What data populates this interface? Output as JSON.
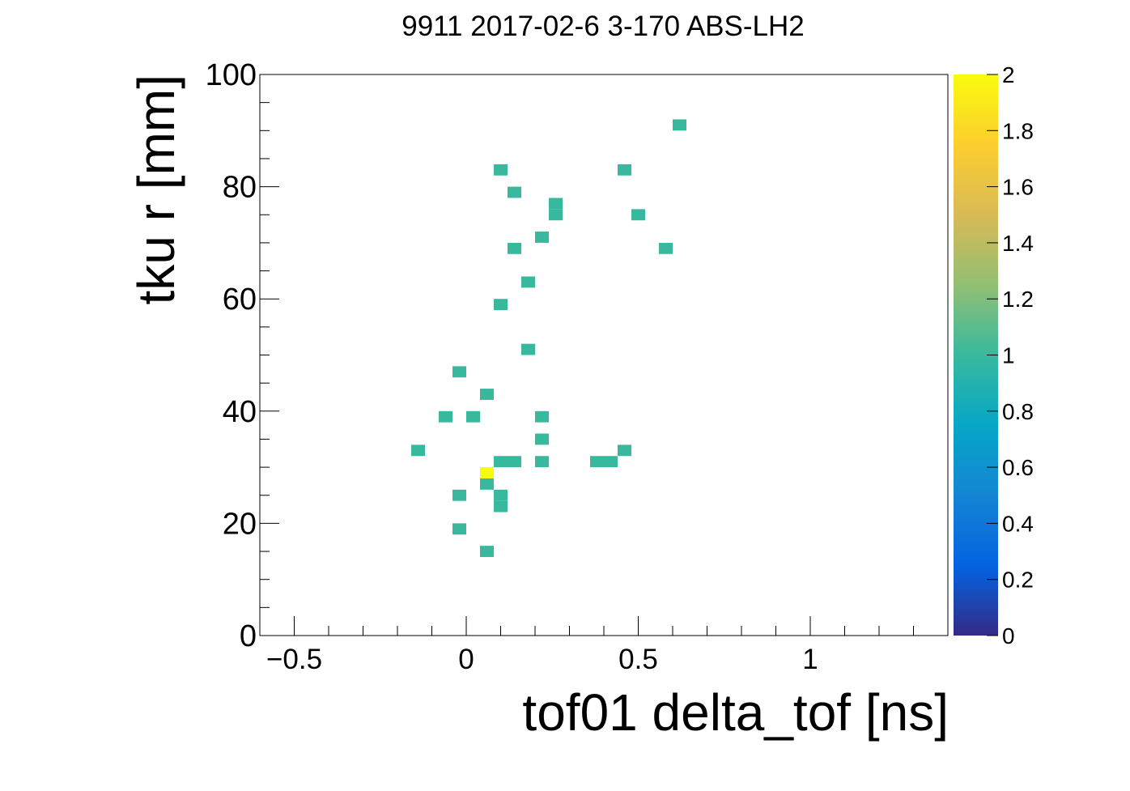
{
  "chart_data": {
    "type": "heatmap",
    "title": "9911 2017-02-6 3-170 ABS-LH2",
    "xlabel": "tof01 delta_tof [ns]",
    "ylabel": "tku r [mm]",
    "xlim": [
      -0.6,
      1.4
    ],
    "ylim": [
      0,
      100
    ],
    "xticks": [
      {
        "value": -0.5,
        "label": "−0.5"
      },
      {
        "value": 0,
        "label": "0"
      },
      {
        "value": 0.5,
        "label": "0.5"
      },
      {
        "value": 1,
        "label": "1"
      }
    ],
    "yticks": [
      {
        "value": 0,
        "label": "0"
      },
      {
        "value": 20,
        "label": "20"
      },
      {
        "value": 40,
        "label": "40"
      },
      {
        "value": 60,
        "label": "60"
      },
      {
        "value": 80,
        "label": "80"
      },
      {
        "value": 100,
        "label": "100"
      }
    ],
    "bin_width_x": 0.04,
    "bin_width_y": 2,
    "colorbar": {
      "zlim": [
        0,
        2
      ],
      "ticks": [
        {
          "value": 0,
          "label": "0"
        },
        {
          "value": 0.2,
          "label": "0.2"
        },
        {
          "value": 0.4,
          "label": "0.4"
        },
        {
          "value": 0.6,
          "label": "0.6"
        },
        {
          "value": 0.8,
          "label": "0.8"
        },
        {
          "value": 1.0,
          "label": "1"
        },
        {
          "value": 1.2,
          "label": "1.2"
        },
        {
          "value": 1.4,
          "label": "1.4"
        },
        {
          "value": 1.6,
          "label": "1.6"
        },
        {
          "value": 1.8,
          "label": "1.8"
        },
        {
          "value": 2.0,
          "label": "2"
        }
      ],
      "palette": [
        "#352a87",
        "#0363e1",
        "#1485d4",
        "#06a7c6",
        "#38b99e",
        "#92bf73",
        "#d9ba56",
        "#fcce2e",
        "#f9fb0e"
      ]
    },
    "cells": [
      {
        "x": 0.62,
        "y": 91,
        "count": 1
      },
      {
        "x": 0.1,
        "y": 83,
        "count": 1
      },
      {
        "x": 0.46,
        "y": 83,
        "count": 1
      },
      {
        "x": 0.14,
        "y": 79,
        "count": 1
      },
      {
        "x": 0.26,
        "y": 77,
        "count": 1
      },
      {
        "x": 0.26,
        "y": 75,
        "count": 1
      },
      {
        "x": 0.5,
        "y": 75,
        "count": 1
      },
      {
        "x": 0.22,
        "y": 71,
        "count": 1
      },
      {
        "x": 0.14,
        "y": 69,
        "count": 1
      },
      {
        "x": 0.58,
        "y": 69,
        "count": 1
      },
      {
        "x": 0.18,
        "y": 63,
        "count": 1
      },
      {
        "x": 0.1,
        "y": 59,
        "count": 1
      },
      {
        "x": 0.18,
        "y": 51,
        "count": 1
      },
      {
        "x": -0.02,
        "y": 47,
        "count": 1
      },
      {
        "x": 0.06,
        "y": 43,
        "count": 1
      },
      {
        "x": -0.06,
        "y": 39,
        "count": 1
      },
      {
        "x": 0.02,
        "y": 39,
        "count": 1
      },
      {
        "x": 0.22,
        "y": 39,
        "count": 1
      },
      {
        "x": 0.22,
        "y": 35,
        "count": 1
      },
      {
        "x": -0.14,
        "y": 33,
        "count": 1
      },
      {
        "x": 0.46,
        "y": 33,
        "count": 1
      },
      {
        "x": 0.1,
        "y": 31,
        "count": 1
      },
      {
        "x": 0.14,
        "y": 31,
        "count": 1
      },
      {
        "x": 0.22,
        "y": 31,
        "count": 1
      },
      {
        "x": 0.38,
        "y": 31,
        "count": 1
      },
      {
        "x": 0.42,
        "y": 31,
        "count": 1
      },
      {
        "x": 0.06,
        "y": 29,
        "count": 2
      },
      {
        "x": 0.06,
        "y": 27,
        "count": 1
      },
      {
        "x": -0.02,
        "y": 25,
        "count": 1
      },
      {
        "x": 0.1,
        "y": 25,
        "count": 1
      },
      {
        "x": 0.1,
        "y": 23,
        "count": 1
      },
      {
        "x": -0.02,
        "y": 19,
        "count": 1
      },
      {
        "x": 0.06,
        "y": 15,
        "count": 1
      }
    ]
  }
}
